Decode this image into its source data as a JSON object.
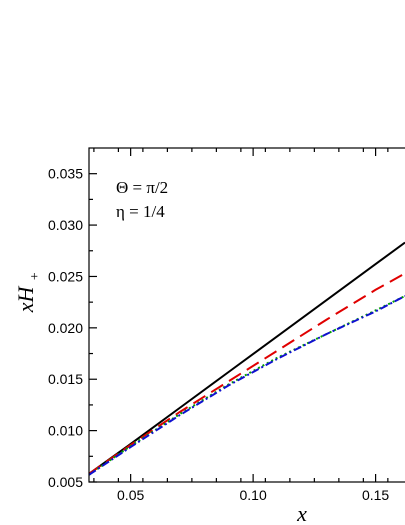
{
  "chart_data": {
    "type": "line",
    "xlabel": "x",
    "ylabel_main": "xH",
    "ylabel_sub": "+",
    "xlim": [
      0.033,
      0.162
    ],
    "ylim": [
      0.005,
      0.0375
    ],
    "x_ticks": [
      0.05,
      0.1,
      0.15
    ],
    "x_tick_labels": [
      "0.05",
      "0.10",
      "0.15"
    ],
    "y_ticks": [
      0.005,
      0.01,
      0.015,
      0.02,
      0.025,
      0.03,
      0.035
    ],
    "y_tick_labels": [
      "0.005",
      "0.010",
      "0.015",
      "0.020",
      "0.025",
      "0.030",
      "0.035"
    ],
    "annotations": [
      "Θ = π/2",
      "η = 1/4"
    ],
    "grid": false,
    "series": [
      {
        "color": "#000000",
        "style": "solid",
        "x": [
          0.033,
          0.05,
          0.07,
          0.09,
          0.11,
          0.13,
          0.15,
          0.162
        ],
        "y": [
          0.0058,
          0.0087,
          0.0122,
          0.0157,
          0.0192,
          0.0227,
          0.0262,
          0.0283
        ]
      },
      {
        "color": "#e00000",
        "style": "dashed",
        "x": [
          0.033,
          0.05,
          0.07,
          0.09,
          0.11,
          0.13,
          0.15,
          0.162
        ],
        "y": [
          0.0058,
          0.0086,
          0.0118,
          0.0148,
          0.0178,
          0.0208,
          0.0237,
          0.0253
        ]
      },
      {
        "color": "#00a000",
        "style": "dotted",
        "x": [
          0.033,
          0.05,
          0.07,
          0.09,
          0.11,
          0.13,
          0.15,
          0.162
        ],
        "y": [
          0.0057,
          0.0085,
          0.0116,
          0.0145,
          0.0171,
          0.0194,
          0.0217,
          0.0231
        ]
      },
      {
        "color": "#1010d0",
        "style": "dashdot",
        "x": [
          0.033,
          0.05,
          0.07,
          0.09,
          0.11,
          0.13,
          0.15,
          0.162
        ],
        "y": [
          0.0057,
          0.0084,
          0.0115,
          0.0144,
          0.017,
          0.0194,
          0.0216,
          0.0231
        ]
      }
    ]
  }
}
